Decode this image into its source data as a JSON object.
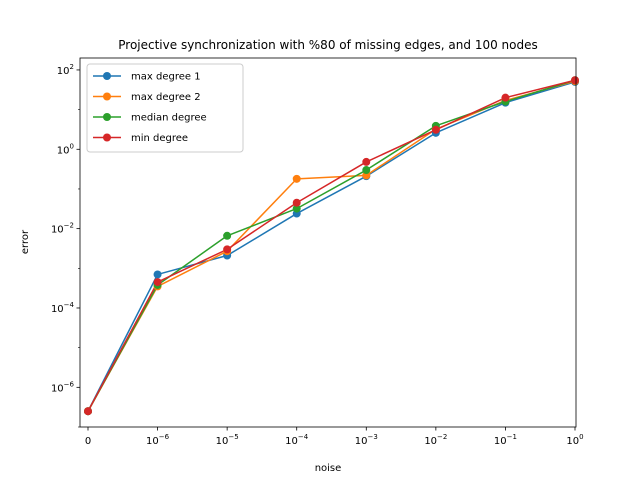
{
  "chart_data": {
    "type": "line",
    "title": "Projective synchronization with %80 of missing edges, and 100 nodes",
    "xlabel": "noise",
    "ylabel": "error",
    "x_scale": "symlog",
    "y_scale": "log",
    "x": [
      0,
      1e-06,
      1e-05,
      0.0001,
      0.001,
      0.01,
      0.1,
      1
    ],
    "x_tick_labels": [
      "0",
      "10^-6",
      "10^-5",
      "10^-4",
      "10^-3",
      "10^-2",
      "10^-1",
      "10^0"
    ],
    "ylim": [
      1e-07,
      200
    ],
    "y_ticks": [
      1e-06,
      0.0001,
      0.01,
      1,
      100
    ],
    "y_tick_labels": [
      "10^-6",
      "10^-4",
      "10^-2",
      "10^0",
      "10^2"
    ],
    "grid": false,
    "legend_position": "top-left",
    "series": [
      {
        "name": "max degree 1",
        "color": "#1f77b4",
        "values": [
          2.5e-07,
          0.0007,
          0.0021,
          0.024,
          0.21,
          2.6,
          15,
          50
        ]
      },
      {
        "name": "max degree 2",
        "color": "#ff7f0e",
        "values": [
          2.5e-07,
          0.00035,
          0.0027,
          0.18,
          0.22,
          3.2,
          17,
          52
        ]
      },
      {
        "name": "median degree",
        "color": "#2ca02c",
        "values": [
          2.5e-07,
          0.00038,
          0.0066,
          0.032,
          0.3,
          3.9,
          16,
          55
        ]
      },
      {
        "name": "min degree",
        "color": "#d62728",
        "values": [
          2.5e-07,
          0.00045,
          0.003,
          0.045,
          0.48,
          3.1,
          20,
          55
        ]
      }
    ]
  }
}
